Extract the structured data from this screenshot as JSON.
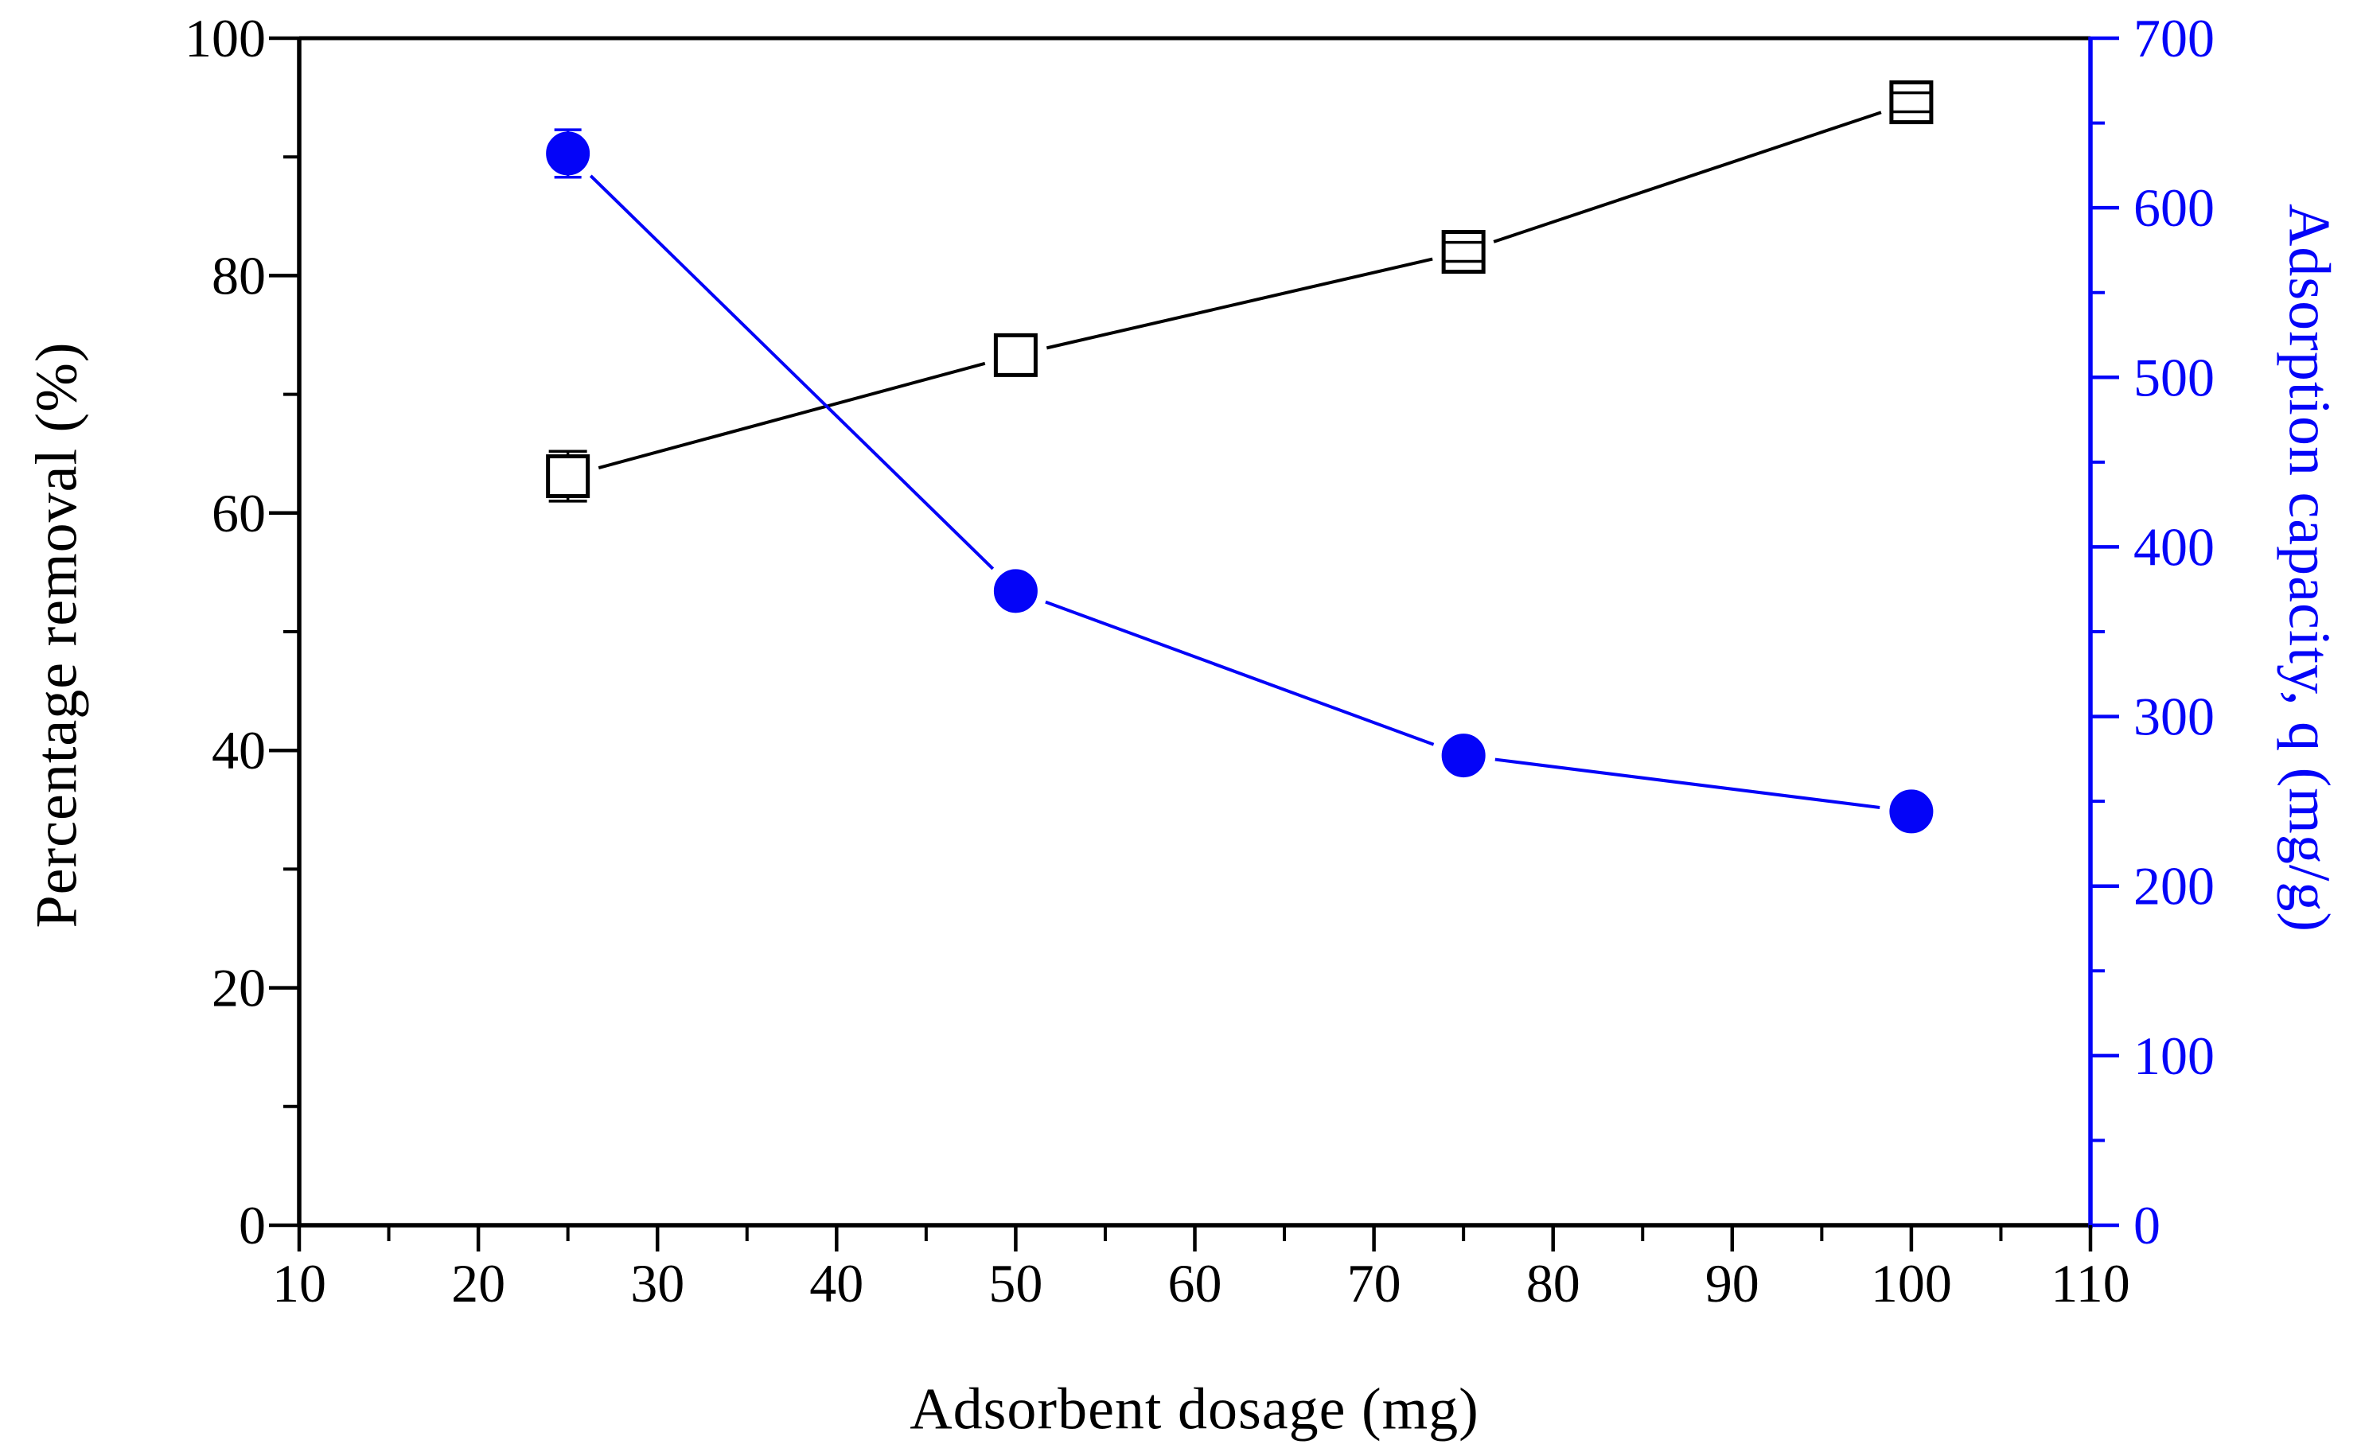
{
  "figure": {
    "background": "#ffffff"
  },
  "colors": {
    "removal_series": "#000000",
    "capacity_series": "#0404f8"
  },
  "chart_data": {
    "type": "line",
    "title": "",
    "legend": "none",
    "grid": "off",
    "axes": {
      "x": {
        "label": "Adsorbent dosage (mg)",
        "min": 10,
        "max": 110,
        "major_ticks": [
          10,
          20,
          30,
          40,
          50,
          60,
          70,
          80,
          90,
          100,
          110
        ],
        "minor_step": 5,
        "color": "#000000"
      },
      "left": {
        "label": "Percentage removal (%)",
        "min": 0,
        "max": 100,
        "major_ticks": [
          0,
          20,
          40,
          60,
          80,
          100
        ],
        "minor_step": 10,
        "color": "#000000"
      },
      "right": {
        "label": "Adsorption capacity, q (mg/g)",
        "min": 0,
        "max": 700,
        "major_ticks": [
          0,
          100,
          200,
          300,
          400,
          500,
          600,
          700
        ],
        "minor_step": 50,
        "color": "#0404f8"
      }
    },
    "series": [
      {
        "name": "Percentage removal",
        "slug": "removal",
        "axis": "left",
        "marker": "open-square",
        "color": "#000000",
        "x": [
          25,
          50,
          75,
          100
        ],
        "y": [
          63.1,
          73.3,
          82.0,
          94.6
        ],
        "y_err": [
          2.1,
          1.65,
          0.8,
          0.8
        ]
      },
      {
        "name": "Adsorption capacity",
        "slug": "capacity",
        "axis": "right",
        "marker": "filled-circle",
        "color": "#0404f8",
        "x": [
          25,
          50,
          75,
          100
        ],
        "y": [
          632,
          374,
          277,
          244
        ],
        "y_err": [
          14,
          8,
          8,
          8
        ]
      }
    ]
  }
}
